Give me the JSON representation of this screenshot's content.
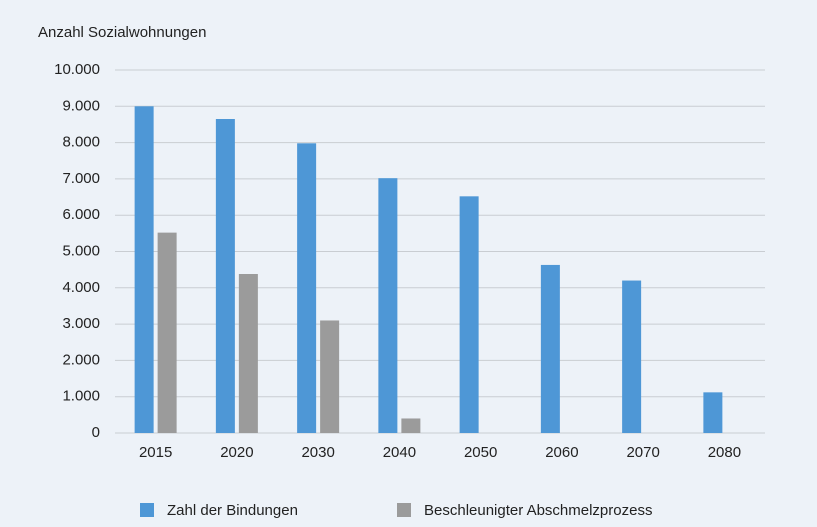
{
  "chart_data": {
    "type": "bar",
    "title": "Anzahl Sozialwohnungen",
    "categories": [
      "2015",
      "2020",
      "2030",
      "2040",
      "2050",
      "2060",
      "2070",
      "2080"
    ],
    "series": [
      {
        "name": "Zahl der Bindungen",
        "color": "#4e97d6",
        "values": [
          9000,
          8650,
          7980,
          7020,
          6520,
          4630,
          4200,
          1120
        ]
      },
      {
        "name": "Beschleunigter Abschmelzprozess",
        "color": "#9b9b9b",
        "values": [
          5520,
          4380,
          3100,
          400,
          null,
          null,
          null,
          null
        ]
      }
    ],
    "ylim": [
      0,
      10000
    ],
    "yticks": [
      0,
      {
        "value": 1000,
        "label": "1.000"
      },
      {
        "value": 2000,
        "label": "2.000"
      },
      {
        "value": 3000,
        "label": "3.000"
      },
      {
        "value": 4000,
        "label": "4.000"
      },
      {
        "value": 5000,
        "label": "5.000"
      },
      {
        "value": 6000,
        "label": "6.000"
      },
      {
        "value": 7000,
        "label": "7.000"
      },
      {
        "value": 8000,
        "label": "8.000"
      },
      {
        "value": 9000,
        "label": "9.000"
      },
      {
        "value": 10000,
        "label": "10.000"
      }
    ],
    "grid": true,
    "legend": "bottom"
  }
}
